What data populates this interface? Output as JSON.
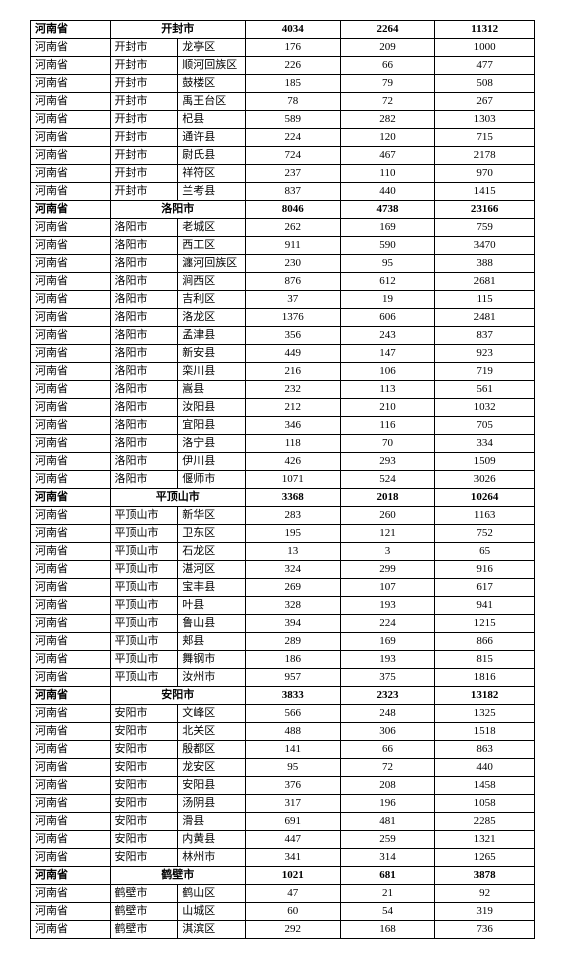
{
  "table": {
    "background_color": "#ffffff",
    "border_color": "#000000",
    "font_family": "SimSun",
    "font_size_pt": 8,
    "columns": [
      {
        "key": "province",
        "align": "left"
      },
      {
        "key": "city",
        "align": "left"
      },
      {
        "key": "district",
        "align": "left"
      },
      {
        "key": "n1",
        "align": "center"
      },
      {
        "key": "n2",
        "align": "center"
      },
      {
        "key": "n3",
        "align": "center"
      }
    ],
    "rows": [
      {
        "type": "city_header",
        "bold": true,
        "province": "河南省",
        "city_span": "开封市",
        "n1": "4034",
        "n2": "2264",
        "n3": "11312"
      },
      {
        "type": "data",
        "province": "河南省",
        "city": "开封市",
        "district": "龙亭区",
        "n1": "176",
        "n2": "209",
        "n3": "1000"
      },
      {
        "type": "data",
        "province": "河南省",
        "city": "开封市",
        "district": "顺河回族区",
        "n1": "226",
        "n2": "66",
        "n3": "477"
      },
      {
        "type": "data",
        "province": "河南省",
        "city": "开封市",
        "district": "鼓楼区",
        "n1": "185",
        "n2": "79",
        "n3": "508"
      },
      {
        "type": "data",
        "province": "河南省",
        "city": "开封市",
        "district": "禹王台区",
        "n1": "78",
        "n2": "72",
        "n3": "267"
      },
      {
        "type": "data",
        "province": "河南省",
        "city": "开封市",
        "district": "杞县",
        "n1": "589",
        "n2": "282",
        "n3": "1303"
      },
      {
        "type": "data",
        "province": "河南省",
        "city": "开封市",
        "district": "通许县",
        "n1": "224",
        "n2": "120",
        "n3": "715"
      },
      {
        "type": "data",
        "province": "河南省",
        "city": "开封市",
        "district": "尉氏县",
        "n1": "724",
        "n2": "467",
        "n3": "2178"
      },
      {
        "type": "data",
        "province": "河南省",
        "city": "开封市",
        "district": "祥符区",
        "n1": "237",
        "n2": "110",
        "n3": "970"
      },
      {
        "type": "data",
        "province": "河南省",
        "city": "开封市",
        "district": "兰考县",
        "n1": "837",
        "n2": "440",
        "n3": "1415"
      },
      {
        "type": "city_header",
        "bold": true,
        "province": "河南省",
        "city_span": "洛阳市",
        "n1": "8046",
        "n2": "4738",
        "n3": "23166"
      },
      {
        "type": "data",
        "province": "河南省",
        "city": "洛阳市",
        "district": "老城区",
        "n1": "262",
        "n2": "169",
        "n3": "759"
      },
      {
        "type": "data",
        "province": "河南省",
        "city": "洛阳市",
        "district": "西工区",
        "n1": "911",
        "n2": "590",
        "n3": "3470"
      },
      {
        "type": "data",
        "province": "河南省",
        "city": "洛阳市",
        "district": "瀍河回族区",
        "n1": "230",
        "n2": "95",
        "n3": "388"
      },
      {
        "type": "data",
        "province": "河南省",
        "city": "洛阳市",
        "district": "涧西区",
        "n1": "876",
        "n2": "612",
        "n3": "2681"
      },
      {
        "type": "data",
        "province": "河南省",
        "city": "洛阳市",
        "district": "吉利区",
        "n1": "37",
        "n2": "19",
        "n3": "115"
      },
      {
        "type": "data",
        "province": "河南省",
        "city": "洛阳市",
        "district": "洛龙区",
        "n1": "1376",
        "n2": "606",
        "n3": "2481"
      },
      {
        "type": "data",
        "province": "河南省",
        "city": "洛阳市",
        "district": "孟津县",
        "n1": "356",
        "n2": "243",
        "n3": "837"
      },
      {
        "type": "data",
        "province": "河南省",
        "city": "洛阳市",
        "district": "新安县",
        "n1": "449",
        "n2": "147",
        "n3": "923"
      },
      {
        "type": "data",
        "province": "河南省",
        "city": "洛阳市",
        "district": "栾川县",
        "n1": "216",
        "n2": "106",
        "n3": "719"
      },
      {
        "type": "data",
        "province": "河南省",
        "city": "洛阳市",
        "district": "嵩县",
        "n1": "232",
        "n2": "113",
        "n3": "561"
      },
      {
        "type": "data",
        "province": "河南省",
        "city": "洛阳市",
        "district": "汝阳县",
        "n1": "212",
        "n2": "210",
        "n3": "1032"
      },
      {
        "type": "data",
        "province": "河南省",
        "city": "洛阳市",
        "district": "宜阳县",
        "n1": "346",
        "n2": "116",
        "n3": "705"
      },
      {
        "type": "data",
        "province": "河南省",
        "city": "洛阳市",
        "district": "洛宁县",
        "n1": "118",
        "n2": "70",
        "n3": "334"
      },
      {
        "type": "data",
        "province": "河南省",
        "city": "洛阳市",
        "district": "伊川县",
        "n1": "426",
        "n2": "293",
        "n3": "1509"
      },
      {
        "type": "data",
        "province": "河南省",
        "city": "洛阳市",
        "district": "偃师市",
        "n1": "1071",
        "n2": "524",
        "n3": "3026"
      },
      {
        "type": "city_header",
        "bold": true,
        "province": "河南省",
        "city_span": "平顶山市",
        "n1": "3368",
        "n2": "2018",
        "n3": "10264"
      },
      {
        "type": "data",
        "province": "河南省",
        "city": "平顶山市",
        "district": "新华区",
        "n1": "283",
        "n2": "260",
        "n3": "1163"
      },
      {
        "type": "data",
        "province": "河南省",
        "city": "平顶山市",
        "district": "卫东区",
        "n1": "195",
        "n2": "121",
        "n3": "752"
      },
      {
        "type": "data",
        "province": "河南省",
        "city": "平顶山市",
        "district": "石龙区",
        "n1": "13",
        "n2": "3",
        "n3": "65"
      },
      {
        "type": "data",
        "province": "河南省",
        "city": "平顶山市",
        "district": "湛河区",
        "n1": "324",
        "n2": "299",
        "n3": "916"
      },
      {
        "type": "data",
        "province": "河南省",
        "city": "平顶山市",
        "district": "宝丰县",
        "n1": "269",
        "n2": "107",
        "n3": "617"
      },
      {
        "type": "data",
        "province": "河南省",
        "city": "平顶山市",
        "district": "叶县",
        "n1": "328",
        "n2": "193",
        "n3": "941"
      },
      {
        "type": "data",
        "province": "河南省",
        "city": "平顶山市",
        "district": "鲁山县",
        "n1": "394",
        "n2": "224",
        "n3": "1215"
      },
      {
        "type": "data",
        "province": "河南省",
        "city": "平顶山市",
        "district": "郏县",
        "n1": "289",
        "n2": "169",
        "n3": "866"
      },
      {
        "type": "data",
        "province": "河南省",
        "city": "平顶山市",
        "district": "舞钢市",
        "n1": "186",
        "n2": "193",
        "n3": "815"
      },
      {
        "type": "data",
        "province": "河南省",
        "city": "平顶山市",
        "district": "汝州市",
        "n1": "957",
        "n2": "375",
        "n3": "1816"
      },
      {
        "type": "city_header",
        "bold": true,
        "province": "河南省",
        "city_span": "安阳市",
        "n1": "3833",
        "n2": "2323",
        "n3": "13182"
      },
      {
        "type": "data",
        "province": "河南省",
        "city": "安阳市",
        "district": "文峰区",
        "n1": "566",
        "n2": "248",
        "n3": "1325"
      },
      {
        "type": "data",
        "province": "河南省",
        "city": "安阳市",
        "district": "北关区",
        "n1": "488",
        "n2": "306",
        "n3": "1518"
      },
      {
        "type": "data",
        "province": "河南省",
        "city": "安阳市",
        "district": "殷都区",
        "n1": "141",
        "n2": "66",
        "n3": "863"
      },
      {
        "type": "data",
        "province": "河南省",
        "city": "安阳市",
        "district": "龙安区",
        "n1": "95",
        "n2": "72",
        "n3": "440"
      },
      {
        "type": "data",
        "province": "河南省",
        "city": "安阳市",
        "district": "安阳县",
        "n1": "376",
        "n2": "208",
        "n3": "1458"
      },
      {
        "type": "data",
        "province": "河南省",
        "city": "安阳市",
        "district": "汤阴县",
        "n1": "317",
        "n2": "196",
        "n3": "1058"
      },
      {
        "type": "data",
        "province": "河南省",
        "city": "安阳市",
        "district": "滑县",
        "n1": "691",
        "n2": "481",
        "n3": "2285"
      },
      {
        "type": "data",
        "province": "河南省",
        "city": "安阳市",
        "district": "内黄县",
        "n1": "447",
        "n2": "259",
        "n3": "1321"
      },
      {
        "type": "data",
        "province": "河南省",
        "city": "安阳市",
        "district": "林州市",
        "n1": "341",
        "n2": "314",
        "n3": "1265"
      },
      {
        "type": "city_header",
        "bold": true,
        "province": "河南省",
        "city_span": "鹤壁市",
        "n1": "1021",
        "n2": "681",
        "n3": "3878"
      },
      {
        "type": "data",
        "province": "河南省",
        "city": "鹤壁市",
        "district": "鹤山区",
        "n1": "47",
        "n2": "21",
        "n3": "92"
      },
      {
        "type": "data",
        "province": "河南省",
        "city": "鹤壁市",
        "district": "山城区",
        "n1": "60",
        "n2": "54",
        "n3": "319"
      },
      {
        "type": "data",
        "province": "河南省",
        "city": "鹤壁市",
        "district": "淇滨区",
        "n1": "292",
        "n2": "168",
        "n3": "736"
      }
    ]
  }
}
